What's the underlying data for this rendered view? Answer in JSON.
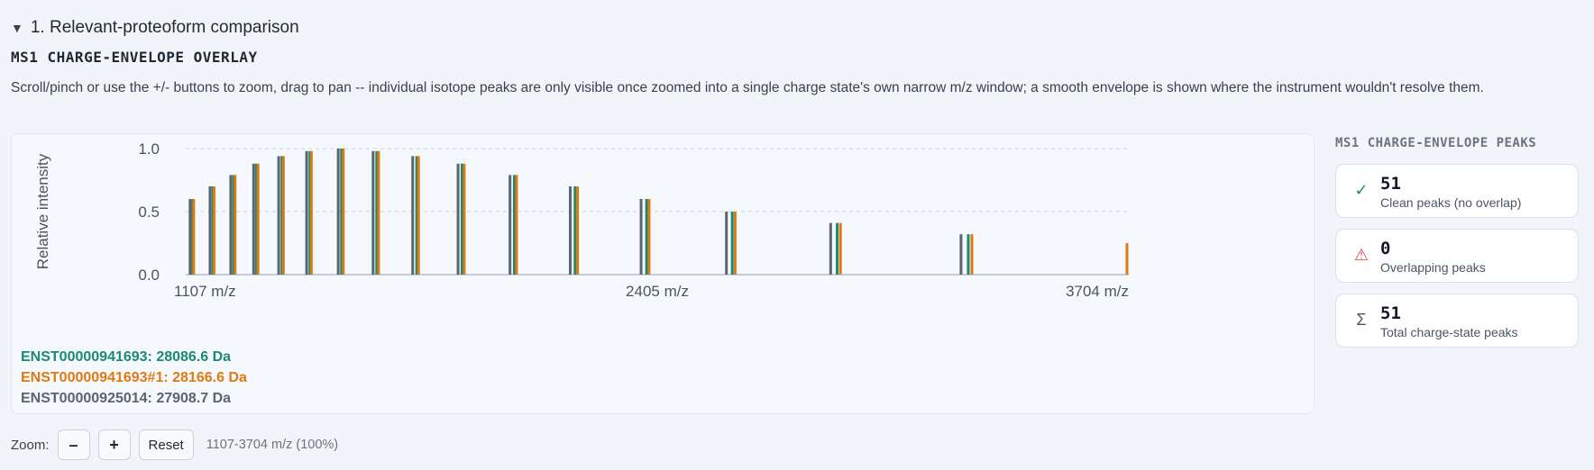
{
  "section": {
    "caret": "▼",
    "title": "1. Relevant-proteoform comparison"
  },
  "chart_title": "MS1 CHARGE-ENVELOPE OVERLAY",
  "description": "Scroll/pinch or use the +/- buttons to zoom, drag to pan -- individual isotope peaks are only visible once zoomed into a single charge state's own narrow m/z window; a smooth envelope is shown where the instrument wouldn't resolve them.",
  "chart_data": {
    "type": "bar",
    "ylabel": "Relative intensity",
    "xlim": [
      1107,
      3704
    ],
    "ylim": [
      0,
      1.0
    ],
    "x_tick_labels": [
      "1107 m/z",
      "2405 m/z",
      "3704 m/z"
    ],
    "y_ticks": [
      0.0,
      0.5,
      1.0
    ],
    "y_tick_labels": [
      "0.0",
      "0.5",
      "1.0"
    ],
    "grid": true,
    "legend_position": "bottom-left",
    "series": [
      {
        "name": "ENST00000941693: 28086.6 Da",
        "color": "#1a8a72",
        "x": [
          1126,
          1182,
          1239,
          1302,
          1372,
          1449,
          1536,
          1633,
          1743,
          1868,
          2012,
          2179,
          2376,
          2612,
          2901,
          3262,
          3726
        ],
        "y": [
          0.6,
          0.7,
          0.79,
          0.88,
          0.94,
          0.98,
          1.0,
          0.98,
          0.94,
          0.88,
          0.79,
          0.7,
          0.6,
          0.5,
          0.41,
          0.32,
          0.25
        ]
      },
      {
        "name": "ENST00000941693#1: 28166.6 Da",
        "color": "#e07a10",
        "x": [
          1129,
          1185,
          1243,
          1306,
          1376,
          1453,
          1541,
          1638,
          1748,
          1874,
          2018,
          2186,
          2383,
          2620,
          2910,
          3272,
          3737
        ],
        "y": [
          0.6,
          0.7,
          0.79,
          0.88,
          0.94,
          0.98,
          1.0,
          0.98,
          0.94,
          0.88,
          0.79,
          0.7,
          0.6,
          0.5,
          0.41,
          0.32,
          0.25
        ]
      },
      {
        "name": "ENST00000925014: 27908.7 Da",
        "color": "#5a6472",
        "x": [
          1119,
          1174,
          1231,
          1294,
          1363,
          1440,
          1527,
          1623,
          1732,
          1857,
          2000,
          2166,
          2361,
          2596,
          2883,
          3242,
          3703
        ],
        "y": [
          0.6,
          0.7,
          0.79,
          0.88,
          0.94,
          0.98,
          1.0,
          0.98,
          0.94,
          0.88,
          0.79,
          0.7,
          0.6,
          0.5,
          0.41,
          0.32,
          0.25
        ]
      }
    ]
  },
  "side_panel": {
    "title": "MS1 CHARGE-ENVELOPE PEAKS",
    "stats": [
      {
        "icon": "check-icon",
        "glyph": "✓",
        "color": "#1a8a72",
        "value": "51",
        "label": "Clean peaks (no overlap)"
      },
      {
        "icon": "warning-icon",
        "glyph": "⚠",
        "color": "#d64545",
        "value": "0",
        "label": "Overlapping peaks"
      },
      {
        "icon": "sigma-icon",
        "glyph": "Σ",
        "color": "#4b5563",
        "value": "51",
        "label": "Total charge-state peaks"
      }
    ]
  },
  "zoom": {
    "label": "Zoom:",
    "minus_label": "–",
    "plus_label": "+",
    "reset_label": "Reset",
    "range_text": "1107-3704 m/z (100%)"
  }
}
